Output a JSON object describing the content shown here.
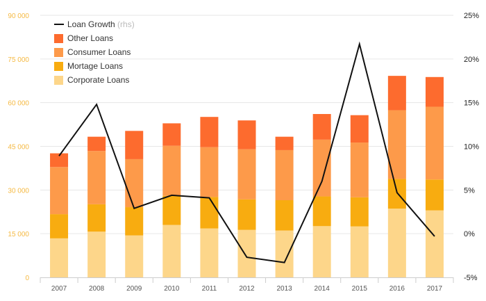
{
  "chart_data": {
    "type": "bar",
    "stacked": true,
    "categories": [
      "2007",
      "2008",
      "2009",
      "2010",
      "2011",
      "2012",
      "2013",
      "2014",
      "2015",
      "2016",
      "2017"
    ],
    "series": [
      {
        "name": "Corporate Loans",
        "color": "#fdd68a",
        "values": [
          13400,
          15700,
          14400,
          18000,
          16800,
          16300,
          16100,
          17600,
          17500,
          23600,
          23000
        ]
      },
      {
        "name": "Mortage Loans",
        "color": "#f8ac10",
        "values": [
          8300,
          9400,
          9700,
          10000,
          10800,
          10500,
          10400,
          10200,
          10000,
          10200,
          10600
        ]
      },
      {
        "name": "Consumer Loans",
        "color": "#fd9a4a",
        "values": [
          16200,
          18300,
          16500,
          17200,
          17100,
          17200,
          17200,
          19500,
          18800,
          23600,
          25000
        ]
      },
      {
        "name": "Other Loans",
        "color": "#fd6b2e",
        "values": [
          4700,
          4900,
          9700,
          7700,
          10400,
          9900,
          4600,
          8800,
          9400,
          11800,
          10200
        ]
      }
    ],
    "line_series": {
      "name": "Loan Growth",
      "name_note": "(rhs)",
      "color": "#111111",
      "axis": "right",
      "values": [
        8.9,
        14.8,
        2.9,
        4.4,
        4.1,
        -2.7,
        -3.3,
        6.0,
        21.7,
        4.7,
        -0.3
      ]
    },
    "left_axis": {
      "ylim": [
        0,
        90000
      ],
      "ticks": [
        0,
        15000,
        30000,
        45000,
        60000,
        75000,
        90000
      ],
      "tick_labels": [
        "0",
        "15 000",
        "30 000",
        "45 000",
        "60 000",
        "75 000",
        "90 000"
      ],
      "tick_color": "#f5b942"
    },
    "right_axis": {
      "ylim": [
        -5,
        25
      ],
      "ticks": [
        -5,
        0,
        5,
        10,
        15,
        20,
        25
      ],
      "tick_labels": [
        "-5%",
        "0%",
        "5%",
        "10%",
        "15%",
        "20%",
        "25%"
      ]
    },
    "legend": {
      "placement": "top-left",
      "items": [
        {
          "label": "Loan Growth",
          "note": "(rhs)",
          "kind": "line",
          "color": "#111111"
        },
        {
          "label": "Other Loans",
          "kind": "box",
          "color": "#fd6b2e"
        },
        {
          "label": "Consumer Loans",
          "kind": "box",
          "color": "#fd9a4a"
        },
        {
          "label": "Mortage Loans",
          "kind": "box",
          "color": "#f8ac10"
        },
        {
          "label": "Corporate Loans",
          "kind": "box",
          "color": "#fdd68a"
        }
      ]
    },
    "grid": true,
    "xlabel": "",
    "ylabel": ""
  }
}
